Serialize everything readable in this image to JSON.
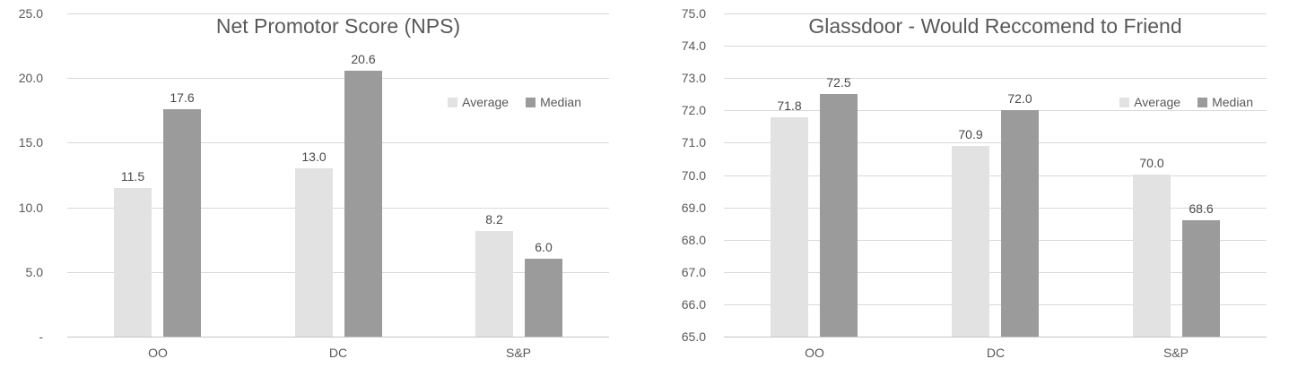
{
  "colors": {
    "background": "#ffffff",
    "average_bar": "#e2e2e2",
    "median_bar": "#9b9b9b",
    "gridline": "#d9d9d9",
    "axis_line": "#c6c6c6",
    "title_text": "#595959",
    "tick_text": "#595959",
    "value_label_text": "#4a4a4a"
  },
  "chart_data": [
    {
      "type": "bar",
      "title": "Net Promotor Score (NPS)",
      "categories": [
        "OO",
        "DC",
        "S&P"
      ],
      "series": [
        {
          "name": "Average",
          "values": [
            11.5,
            13.0,
            8.2
          ],
          "color_key": "average_bar"
        },
        {
          "name": "Median",
          "values": [
            17.6,
            20.6,
            6.0
          ],
          "color_key": "median_bar"
        }
      ],
      "value_labels": [
        [
          "11.5",
          "13.0",
          "8.2"
        ],
        [
          "17.6",
          "20.6",
          "6.0"
        ]
      ],
      "ylim": [
        0,
        25
      ],
      "yticks": [
        {
          "value": 25,
          "label": "25.0"
        },
        {
          "value": 20,
          "label": "20.0"
        },
        {
          "value": 15,
          "label": "15.0"
        },
        {
          "value": 10,
          "label": "10.0"
        },
        {
          "value": 5,
          "label": "5.0"
        },
        {
          "value": 0,
          "label": "-"
        }
      ],
      "grid": true,
      "legend": {
        "position": "inside-right",
        "items": [
          "Average",
          "Median"
        ]
      }
    },
    {
      "type": "bar",
      "title": "Glassdoor - Would Reccomend to Friend",
      "categories": [
        "OO",
        "DC",
        "S&P"
      ],
      "series": [
        {
          "name": "Average",
          "values": [
            71.8,
            70.9,
            70.0
          ],
          "color_key": "average_bar"
        },
        {
          "name": "Median",
          "values": [
            72.5,
            72.0,
            68.6
          ],
          "color_key": "median_bar"
        }
      ],
      "value_labels": [
        [
          "71.8",
          "70.9",
          "70.0"
        ],
        [
          "72.5",
          "72.0",
          "68.6"
        ]
      ],
      "ylim": [
        65,
        75
      ],
      "yticks": [
        {
          "value": 75,
          "label": "75.0"
        },
        {
          "value": 74,
          "label": "74.0"
        },
        {
          "value": 73,
          "label": "73.0"
        },
        {
          "value": 72,
          "label": "72.0"
        },
        {
          "value": 71,
          "label": "71.0"
        },
        {
          "value": 70,
          "label": "70.0"
        },
        {
          "value": 69,
          "label": "69.0"
        },
        {
          "value": 68,
          "label": "68.0"
        },
        {
          "value": 67,
          "label": "67.0"
        },
        {
          "value": 66,
          "label": "66.0"
        },
        {
          "value": 65,
          "label": "65.0"
        }
      ],
      "grid": true,
      "legend": {
        "position": "inside-right",
        "items": [
          "Average",
          "Median"
        ]
      }
    }
  ]
}
